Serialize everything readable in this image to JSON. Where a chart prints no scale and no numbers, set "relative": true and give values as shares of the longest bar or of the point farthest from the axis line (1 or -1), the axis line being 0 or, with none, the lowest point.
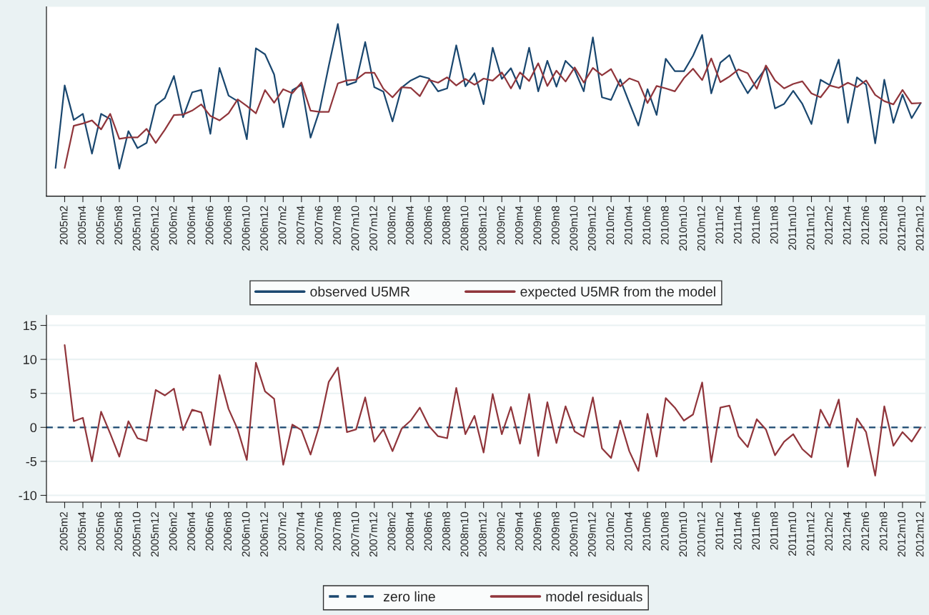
{
  "chart_data": [
    {
      "type": "line",
      "relative": true,
      "tick_labels": "x",
      "grid": false,
      "legend": "bottom",
      "categories": [
        null,
        "2005m2",
        null,
        "2005m4",
        null,
        "2005m6",
        null,
        "2005m8",
        null,
        "2005m10",
        null,
        "2005m12",
        null,
        "2006m2",
        null,
        "2006m4",
        null,
        "2006m6",
        null,
        "2006m8",
        null,
        "2006m10",
        null,
        "2006m12",
        null,
        "2007m2",
        null,
        "2007m4",
        null,
        "2007m6",
        null,
        "2007m8",
        null,
        "2007m10",
        null,
        "2007m12",
        null,
        "2008m2",
        null,
        "2008m4",
        null,
        "2008m6",
        null,
        "2008m8",
        null,
        "2008m10",
        null,
        "2008m12",
        null,
        "2009m2",
        null,
        "2009m4",
        null,
        "2009m6",
        null,
        "2009m8",
        null,
        "2009m10",
        null,
        "2009m12",
        null,
        "2010m2",
        null,
        "2010m4",
        null,
        "2010m6",
        null,
        "2010m8",
        null,
        "2010m10",
        null,
        "2010m12",
        null,
        "2011m2",
        null,
        "2011m4",
        null,
        "2011m6",
        null,
        "2011m8",
        null,
        "2011m10",
        null,
        "2011m12",
        null,
        "2012m2",
        null,
        "2012m4",
        null,
        "2012m6",
        null,
        "2012m8",
        null,
        "2012m10",
        null,
        "2012m12"
      ],
      "series": [
        {
          "name": "observed U5MR",
          "color": "#1a476f",
          "values": [
            0.164,
            0.643,
            0.443,
            0.478,
            0.247,
            0.478,
            0.448,
            0.16,
            0.378,
            0.279,
            0.31,
            0.528,
            0.569,
            0.698,
            0.459,
            0.603,
            0.617,
            0.362,
            0.745,
            0.584,
            0.552,
            0.331,
            0.859,
            0.824,
            0.707,
            0.4,
            0.616,
            0.647,
            0.34,
            0.5,
            0.757,
            1,
            0.645,
            0.664,
            0.895,
            0.633,
            0.607,
            0.434,
            0.631,
            0.672,
            0.698,
            0.684,
            0.609,
            0.626,
            0.876,
            0.638,
            0.714,
            0.534,
            0.862,
            0.681,
            0.743,
            0.624,
            0.862,
            0.609,
            0.786,
            0.636,
            0.786,
            0.733,
            0.609,
            0.922,
            0.574,
            0.559,
            0.678,
            0.543,
            0.41,
            0.621,
            0.472,
            0.798,
            0.726,
            0.726,
            0.816,
            0.936,
            0.597,
            0.776,
            0.819,
            0.69,
            0.598,
            0.672,
            0.745,
            0.51,
            0.536,
            0.612,
            0.536,
            0.419,
            0.676,
            0.645,
            0.793,
            0.426,
            0.69,
            0.647,
            0.307,
            0.676,
            0.426,
            0.59,
            0.453,
            0.541
          ]
        },
        {
          "name": "expected U5MR from the model",
          "color": "#90353b",
          "values": [
            null,
            0.164,
            0.409,
            0.422,
            0.44,
            0.388,
            0.478,
            0.333,
            0.341,
            0.341,
            0.391,
            0.309,
            0.386,
            0.471,
            0.474,
            0.497,
            0.533,
            0.466,
            0.44,
            0.481,
            0.562,
            0.524,
            0.481,
            0.616,
            0.543,
            0.621,
            0.598,
            0.66,
            0.497,
            0.49,
            0.49,
            0.655,
            0.672,
            0.676,
            0.717,
            0.717,
            0.624,
            0.574,
            0.633,
            0.629,
            0.581,
            0.676,
            0.659,
            0.69,
            0.643,
            0.681,
            0.647,
            0.683,
            0.671,
            0.719,
            0.626,
            0.719,
            0.669,
            0.772,
            0.64,
            0.729,
            0.666,
            0.748,
            0.66,
            0.745,
            0.702,
            0.738,
            0.638,
            0.684,
            0.664,
            0.541,
            0.64,
            0.626,
            0.609,
            0.686,
            0.74,
            0.674,
            0.8,
            0.662,
            0.695,
            0.736,
            0.714,
            0.624,
            0.759,
            0.672,
            0.626,
            0.652,
            0.667,
            0.597,
            0.574,
            0.643,
            0.629,
            0.659,
            0.634,
            0.672,
            0.588,
            0.552,
            0.533,
            0.617,
            0.538,
            0.541
          ]
        }
      ]
    },
    {
      "type": "line",
      "grid": "y",
      "legend": "bottom",
      "ylim": [
        -11,
        16.5
      ],
      "yticks": [
        -10,
        -5,
        0,
        5,
        10,
        15
      ],
      "categories": [
        null,
        "2005m2",
        null,
        "2005m4",
        null,
        "2005m6",
        null,
        "2005m8",
        null,
        "2005m10",
        null,
        "2005m12",
        null,
        "2006m2",
        null,
        "2006m4",
        null,
        "2006m6",
        null,
        "2006m8",
        null,
        "2006m10",
        null,
        "2006m12",
        null,
        "2007m2",
        null,
        "2007m4",
        null,
        "2007m6",
        null,
        "2007m8",
        null,
        "2007m10",
        null,
        "2007m12",
        null,
        "2008m2",
        null,
        "2008m4",
        null,
        "2008m6",
        null,
        "2008m8",
        null,
        "2008m10",
        null,
        "2008m12",
        null,
        "2009m2",
        null,
        "2009m4",
        null,
        "2009m6",
        null,
        "2009m8",
        null,
        "2009m10",
        null,
        "2009m12",
        null,
        "2010m2",
        null,
        "2010m4",
        null,
        "2010m6",
        null,
        "2010m8",
        null,
        "2010m10",
        null,
        "2010m12",
        null,
        "2011m2",
        null,
        "2011m4",
        null,
        "2011m6",
        null,
        "2011m8",
        null,
        "2011m10",
        null,
        "2011m12",
        null,
        "2012m2",
        null,
        "2012m4",
        null,
        "2012m6",
        null,
        "2012m8",
        null,
        "2012m10",
        null,
        "2012m12"
      ],
      "ref_lines": [
        {
          "axis": "y",
          "value": 0,
          "label": "zero line",
          "color": "#1a476f",
          "line_style": "dashed"
        }
      ],
      "series": [
        {
          "name": "model residuals",
          "color": "#90353b",
          "values": [
            null,
            12.1,
            0.9,
            1.4,
            -5.0,
            2.3,
            -0.9,
            -4.3,
            0.9,
            -1.6,
            -2.0,
            5.5,
            4.7,
            5.7,
            -0.4,
            2.6,
            2.2,
            -2.6,
            7.7,
            2.7,
            -0.3,
            -4.8,
            9.5,
            5.3,
            4.2,
            -5.5,
            0.4,
            -0.4,
            -4.0,
            0.4,
            6.7,
            8.8,
            -0.7,
            -0.3,
            4.4,
            -2.1,
            -0.3,
            -3.5,
            -0.2,
            1.0,
            2.9,
            0.2,
            -1.3,
            -1.6,
            5.8,
            -1.0,
            1.7,
            -3.7,
            4.9,
            -1.0,
            3.0,
            -2.4,
            4.9,
            -4.2,
            3.7,
            -2.3,
            3.1,
            -0.6,
            -1.4,
            4.4,
            -3.1,
            -4.5,
            1.0,
            -3.5,
            -6.4,
            2.0,
            -4.3,
            4.3,
            2.9,
            1.0,
            1.9,
            6.6,
            -5.1,
            2.9,
            3.2,
            -1.3,
            -2.9,
            1.2,
            -0.3,
            -4.1,
            -2.1,
            -1.0,
            -3.2,
            -4.4,
            2.6,
            0.1,
            4.1,
            -5.8,
            1.3,
            -0.7,
            -7.1,
            3.1,
            -2.7,
            -0.7,
            -2.1,
            0.0
          ]
        }
      ]
    }
  ]
}
